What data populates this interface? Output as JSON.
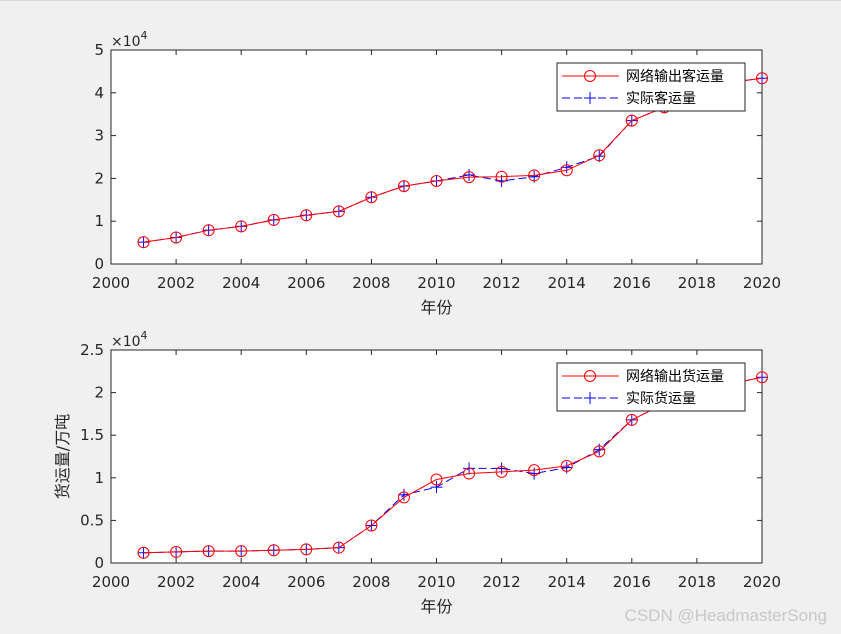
{
  "watermark": "CSDN @HeadmasterSong",
  "chart_data": [
    {
      "type": "line",
      "xlabel": "年份",
      "ylabel": "",
      "xlim": [
        2000,
        2020
      ],
      "ylim": [
        0,
        50000
      ],
      "exponent_label": "×10",
      "exponent_power": "4",
      "xticks": [
        2000,
        2002,
        2004,
        2006,
        2008,
        2010,
        2012,
        2014,
        2016,
        2018,
        2020
      ],
      "xtick_labels": [
        "2000",
        "2002",
        "2004",
        "2006",
        "2008",
        "2010",
        "2012",
        "2014",
        "2016",
        "2018",
        "2020"
      ],
      "yticks": [
        0,
        10000,
        20000,
        30000,
        40000,
        50000
      ],
      "ytick_labels": [
        "0",
        "1",
        "2",
        "3",
        "4",
        "5"
      ],
      "legend_position": "top-right",
      "x": [
        2001,
        2002,
        2003,
        2004,
        2005,
        2006,
        2007,
        2008,
        2009,
        2010,
        2011,
        2012,
        2013,
        2014,
        2015,
        2016,
        2017,
        2018,
        2019,
        2020
      ],
      "series": [
        {
          "name": "网络输出客运量",
          "color": "#ff0000",
          "marker": "circle",
          "linestyle": "solid",
          "values": [
            5100,
            6200,
            7900,
            8800,
            10300,
            11400,
            12300,
            15600,
            18200,
            19400,
            20300,
            20400,
            20700,
            21900,
            25400,
            33500,
            36600,
            40600,
            42400,
            43400
          ]
        },
        {
          "name": "实际客运量",
          "color": "#0000ff",
          "marker": "plus",
          "linestyle": "dashed",
          "values": [
            5100,
            6200,
            7900,
            8800,
            10300,
            11400,
            12300,
            15600,
            18200,
            19400,
            20800,
            19400,
            20400,
            22600,
            25200,
            33500,
            36600,
            40600,
            42400,
            43400
          ]
        }
      ]
    },
    {
      "type": "line",
      "xlabel": "年份",
      "ylabel": "货运量/万吨",
      "xlim": [
        2000,
        2020
      ],
      "ylim": [
        0,
        25000
      ],
      "exponent_label": "×10",
      "exponent_power": "4",
      "xticks": [
        2000,
        2002,
        2004,
        2006,
        2008,
        2010,
        2012,
        2014,
        2016,
        2018,
        2020
      ],
      "xtick_labels": [
        "2000",
        "2002",
        "2004",
        "2006",
        "2008",
        "2010",
        "2012",
        "2014",
        "2016",
        "2018",
        "2020"
      ],
      "yticks": [
        0,
        5000,
        10000,
        15000,
        20000,
        25000
      ],
      "ytick_labels": [
        "0",
        "0.5",
        "1",
        "1.5",
        "2",
        "2.5"
      ],
      "legend_position": "top-right",
      "x": [
        2001,
        2002,
        2003,
        2004,
        2005,
        2006,
        2007,
        2008,
        2009,
        2010,
        2011,
        2012,
        2013,
        2014,
        2015,
        2016,
        2017,
        2018,
        2019,
        2020
      ],
      "series": [
        {
          "name": "网络输出货运量",
          "color": "#ff0000",
          "marker": "circle",
          "linestyle": "solid",
          "values": [
            1200,
            1300,
            1400,
            1400,
            1500,
            1600,
            1800,
            4400,
            7700,
            9800,
            10500,
            10700,
            10900,
            11400,
            13100,
            16800,
            18700,
            20000,
            21000,
            21800
          ]
        },
        {
          "name": "实际货运量",
          "color": "#0000ff",
          "marker": "plus",
          "linestyle": "dashed",
          "values": [
            1200,
            1300,
            1400,
            1400,
            1500,
            1600,
            1800,
            4400,
            8000,
            8900,
            11100,
            11100,
            10500,
            11200,
            13300,
            16800,
            18700,
            20000,
            21000,
            21800
          ]
        }
      ]
    }
  ]
}
